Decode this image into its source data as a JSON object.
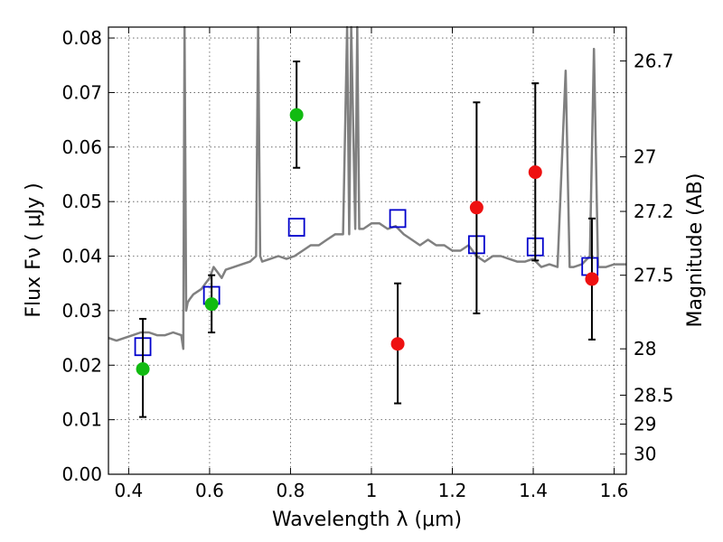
{
  "chart_data": {
    "type": "scatter",
    "xlabel": "Wavelength  λ (μm)",
    "ylabel": "Flux  Fν  ( μJy )",
    "ylabel_right": "Magnitude (AB)",
    "xlim": [
      0.35,
      1.63
    ],
    "ylim": [
      0.0,
      0.082
    ],
    "x_ticks": [
      0.4,
      0.6,
      0.8,
      1.0,
      1.2,
      1.4,
      1.6
    ],
    "x_tick_labels": [
      "0.4",
      "0.6",
      "0.8",
      "1",
      "1.2",
      "1.4",
      "1.6"
    ],
    "y_ticks": [
      0.0,
      0.01,
      0.02,
      0.03,
      0.04,
      0.05,
      0.06,
      0.07,
      0.08
    ],
    "y_tick_labels": [
      "0.00",
      "0.01",
      "0.02",
      "0.03",
      "0.04",
      "0.05",
      "0.06",
      "0.07",
      "0.08"
    ],
    "right_ticks": [
      {
        "label": "26.7",
        "flux": 0.0758
      },
      {
        "label": "27",
        "flux": 0.0582
      },
      {
        "label": "27.2",
        "flux": 0.0482
      },
      {
        "label": "27.5",
        "flux": 0.0365
      },
      {
        "label": "28",
        "flux": 0.023
      },
      {
        "label": "28.5",
        "flux": 0.0145
      },
      {
        "label": "29",
        "flux": 0.0092
      },
      {
        "label": "30",
        "flux": 0.0037
      }
    ],
    "grid": true,
    "colors": {
      "model": "#808080",
      "green": "#11bb11",
      "red": "#ee1111",
      "square": "#0000cc",
      "error": "#000000"
    },
    "series": [
      {
        "name": "Model SED",
        "type": "line",
        "x": [
          0.35,
          0.37,
          0.39,
          0.41,
          0.43,
          0.45,
          0.47,
          0.49,
          0.51,
          0.53,
          0.535,
          0.538,
          0.542,
          0.546,
          0.55,
          0.56,
          0.58,
          0.59,
          0.6,
          0.61,
          0.62,
          0.63,
          0.64,
          0.66,
          0.68,
          0.7,
          0.715,
          0.72,
          0.725,
          0.73,
          0.75,
          0.77,
          0.79,
          0.81,
          0.83,
          0.85,
          0.87,
          0.89,
          0.91,
          0.93,
          0.94,
          0.945,
          0.95,
          0.96,
          0.965,
          0.97,
          0.98,
          1.0,
          1.02,
          1.04,
          1.06,
          1.08,
          1.1,
          1.12,
          1.14,
          1.16,
          1.18,
          1.2,
          1.22,
          1.24,
          1.26,
          1.28,
          1.3,
          1.32,
          1.34,
          1.36,
          1.38,
          1.4,
          1.42,
          1.44,
          1.46,
          1.48,
          1.49,
          1.5,
          1.52,
          1.54,
          1.55,
          1.56,
          1.58,
          1.6,
          1.63
        ],
        "y": [
          0.025,
          0.0245,
          0.025,
          0.0255,
          0.026,
          0.026,
          0.0255,
          0.0255,
          0.026,
          0.0255,
          0.023,
          0.082,
          0.03,
          0.0315,
          0.032,
          0.033,
          0.034,
          0.035,
          0.036,
          0.038,
          0.037,
          0.036,
          0.0375,
          0.038,
          0.0385,
          0.039,
          0.04,
          0.082,
          0.04,
          0.039,
          0.0395,
          0.04,
          0.0395,
          0.04,
          0.041,
          0.042,
          0.042,
          0.043,
          0.044,
          0.044,
          0.082,
          0.044,
          0.082,
          0.045,
          0.082,
          0.045,
          0.045,
          0.046,
          0.046,
          0.045,
          0.0455,
          0.044,
          0.043,
          0.042,
          0.043,
          0.042,
          0.042,
          0.041,
          0.041,
          0.042,
          0.04,
          0.039,
          0.04,
          0.04,
          0.0395,
          0.039,
          0.039,
          0.0395,
          0.038,
          0.0385,
          0.038,
          0.074,
          0.038,
          0.038,
          0.0385,
          0.04,
          0.078,
          0.038,
          0.038,
          0.0385,
          0.0385
        ]
      },
      {
        "name": "Green detections",
        "type": "errorbar",
        "x": [
          0.435,
          0.605,
          0.815
        ],
        "y": [
          0.0193,
          0.0312,
          0.0659
        ],
        "yerr_low": [
          0.0088,
          0.0052,
          0.0097
        ],
        "yerr_high": [
          0.0092,
          0.0053,
          0.0098
        ]
      },
      {
        "name": "Red detections",
        "type": "errorbar",
        "x": [
          1.065,
          1.26,
          1.405,
          1.545
        ],
        "y": [
          0.0239,
          0.0489,
          0.0554,
          0.0358
        ],
        "yerr_low": [
          0.0109,
          0.0194,
          0.0162,
          0.0111
        ],
        "yerr_high": [
          0.0111,
          0.0193,
          0.0163,
          0.0111
        ]
      },
      {
        "name": "Model photometry",
        "type": "scatter",
        "marker": "open-square",
        "x": [
          0.435,
          0.605,
          0.815,
          1.065,
          1.26,
          1.405,
          1.54
        ],
        "y": [
          0.0234,
          0.0328,
          0.0453,
          0.0469,
          0.0421,
          0.0417,
          0.0381
        ]
      }
    ]
  }
}
